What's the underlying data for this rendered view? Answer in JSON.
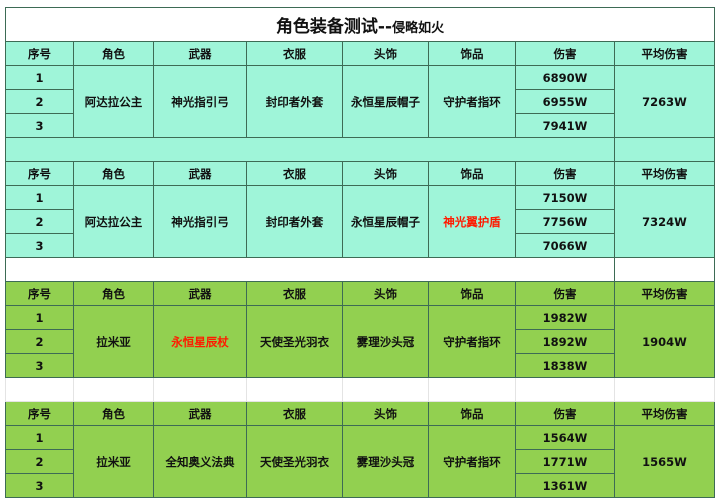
{
  "title": {
    "main": "角色装备测试--",
    "sub": "侵略如火"
  },
  "headers": [
    "序号",
    "角色",
    "武器",
    "衣服",
    "头饰",
    "饰品",
    "伤害",
    "平均伤害"
  ],
  "colors": {
    "mint": "#9ff5d9",
    "green": "#92d050",
    "highlight_text": "#ff1a00"
  },
  "sets": [
    {
      "role": "阿达拉公主",
      "weapon": "神光指引弓",
      "clothes": "封印者外套",
      "headwear": "永恒星辰帽子",
      "accessory": "守护者指环",
      "highlight": "none",
      "rows": [
        {
          "n": "1",
          "damage": "6890W"
        },
        {
          "n": "2",
          "damage": "6955W"
        },
        {
          "n": "3",
          "damage": "7941W"
        }
      ],
      "average": "7263W"
    },
    {
      "role": "阿达拉公主",
      "weapon": "神光指引弓",
      "clothes": "封印者外套",
      "headwear": "永恒星辰帽子",
      "accessory": "神光翼护盾",
      "highlight": "accessory",
      "rows": [
        {
          "n": "1",
          "damage": "7150W"
        },
        {
          "n": "2",
          "damage": "7756W"
        },
        {
          "n": "3",
          "damage": "7066W"
        }
      ],
      "average": "7324W"
    },
    {
      "role": "拉米亚",
      "weapon": "永恒星辰杖",
      "clothes": "天使圣光羽衣",
      "headwear": "雾理沙头冠",
      "accessory": "守护者指环",
      "highlight": "weapon",
      "rows": [
        {
          "n": "1",
          "damage": "1982W"
        },
        {
          "n": "2",
          "damage": "1892W"
        },
        {
          "n": "3",
          "damage": "1838W"
        }
      ],
      "average": "1904W"
    },
    {
      "role": "拉米亚",
      "weapon": "全知奥义法典",
      "clothes": "天使圣光羽衣",
      "headwear": "雾理沙头冠",
      "accessory": "守护者指环",
      "highlight": "none",
      "rows": [
        {
          "n": "1",
          "damage": "1564W"
        },
        {
          "n": "2",
          "damage": "1771W"
        },
        {
          "n": "3",
          "damage": "1361W"
        }
      ],
      "average": "1565W"
    }
  ]
}
